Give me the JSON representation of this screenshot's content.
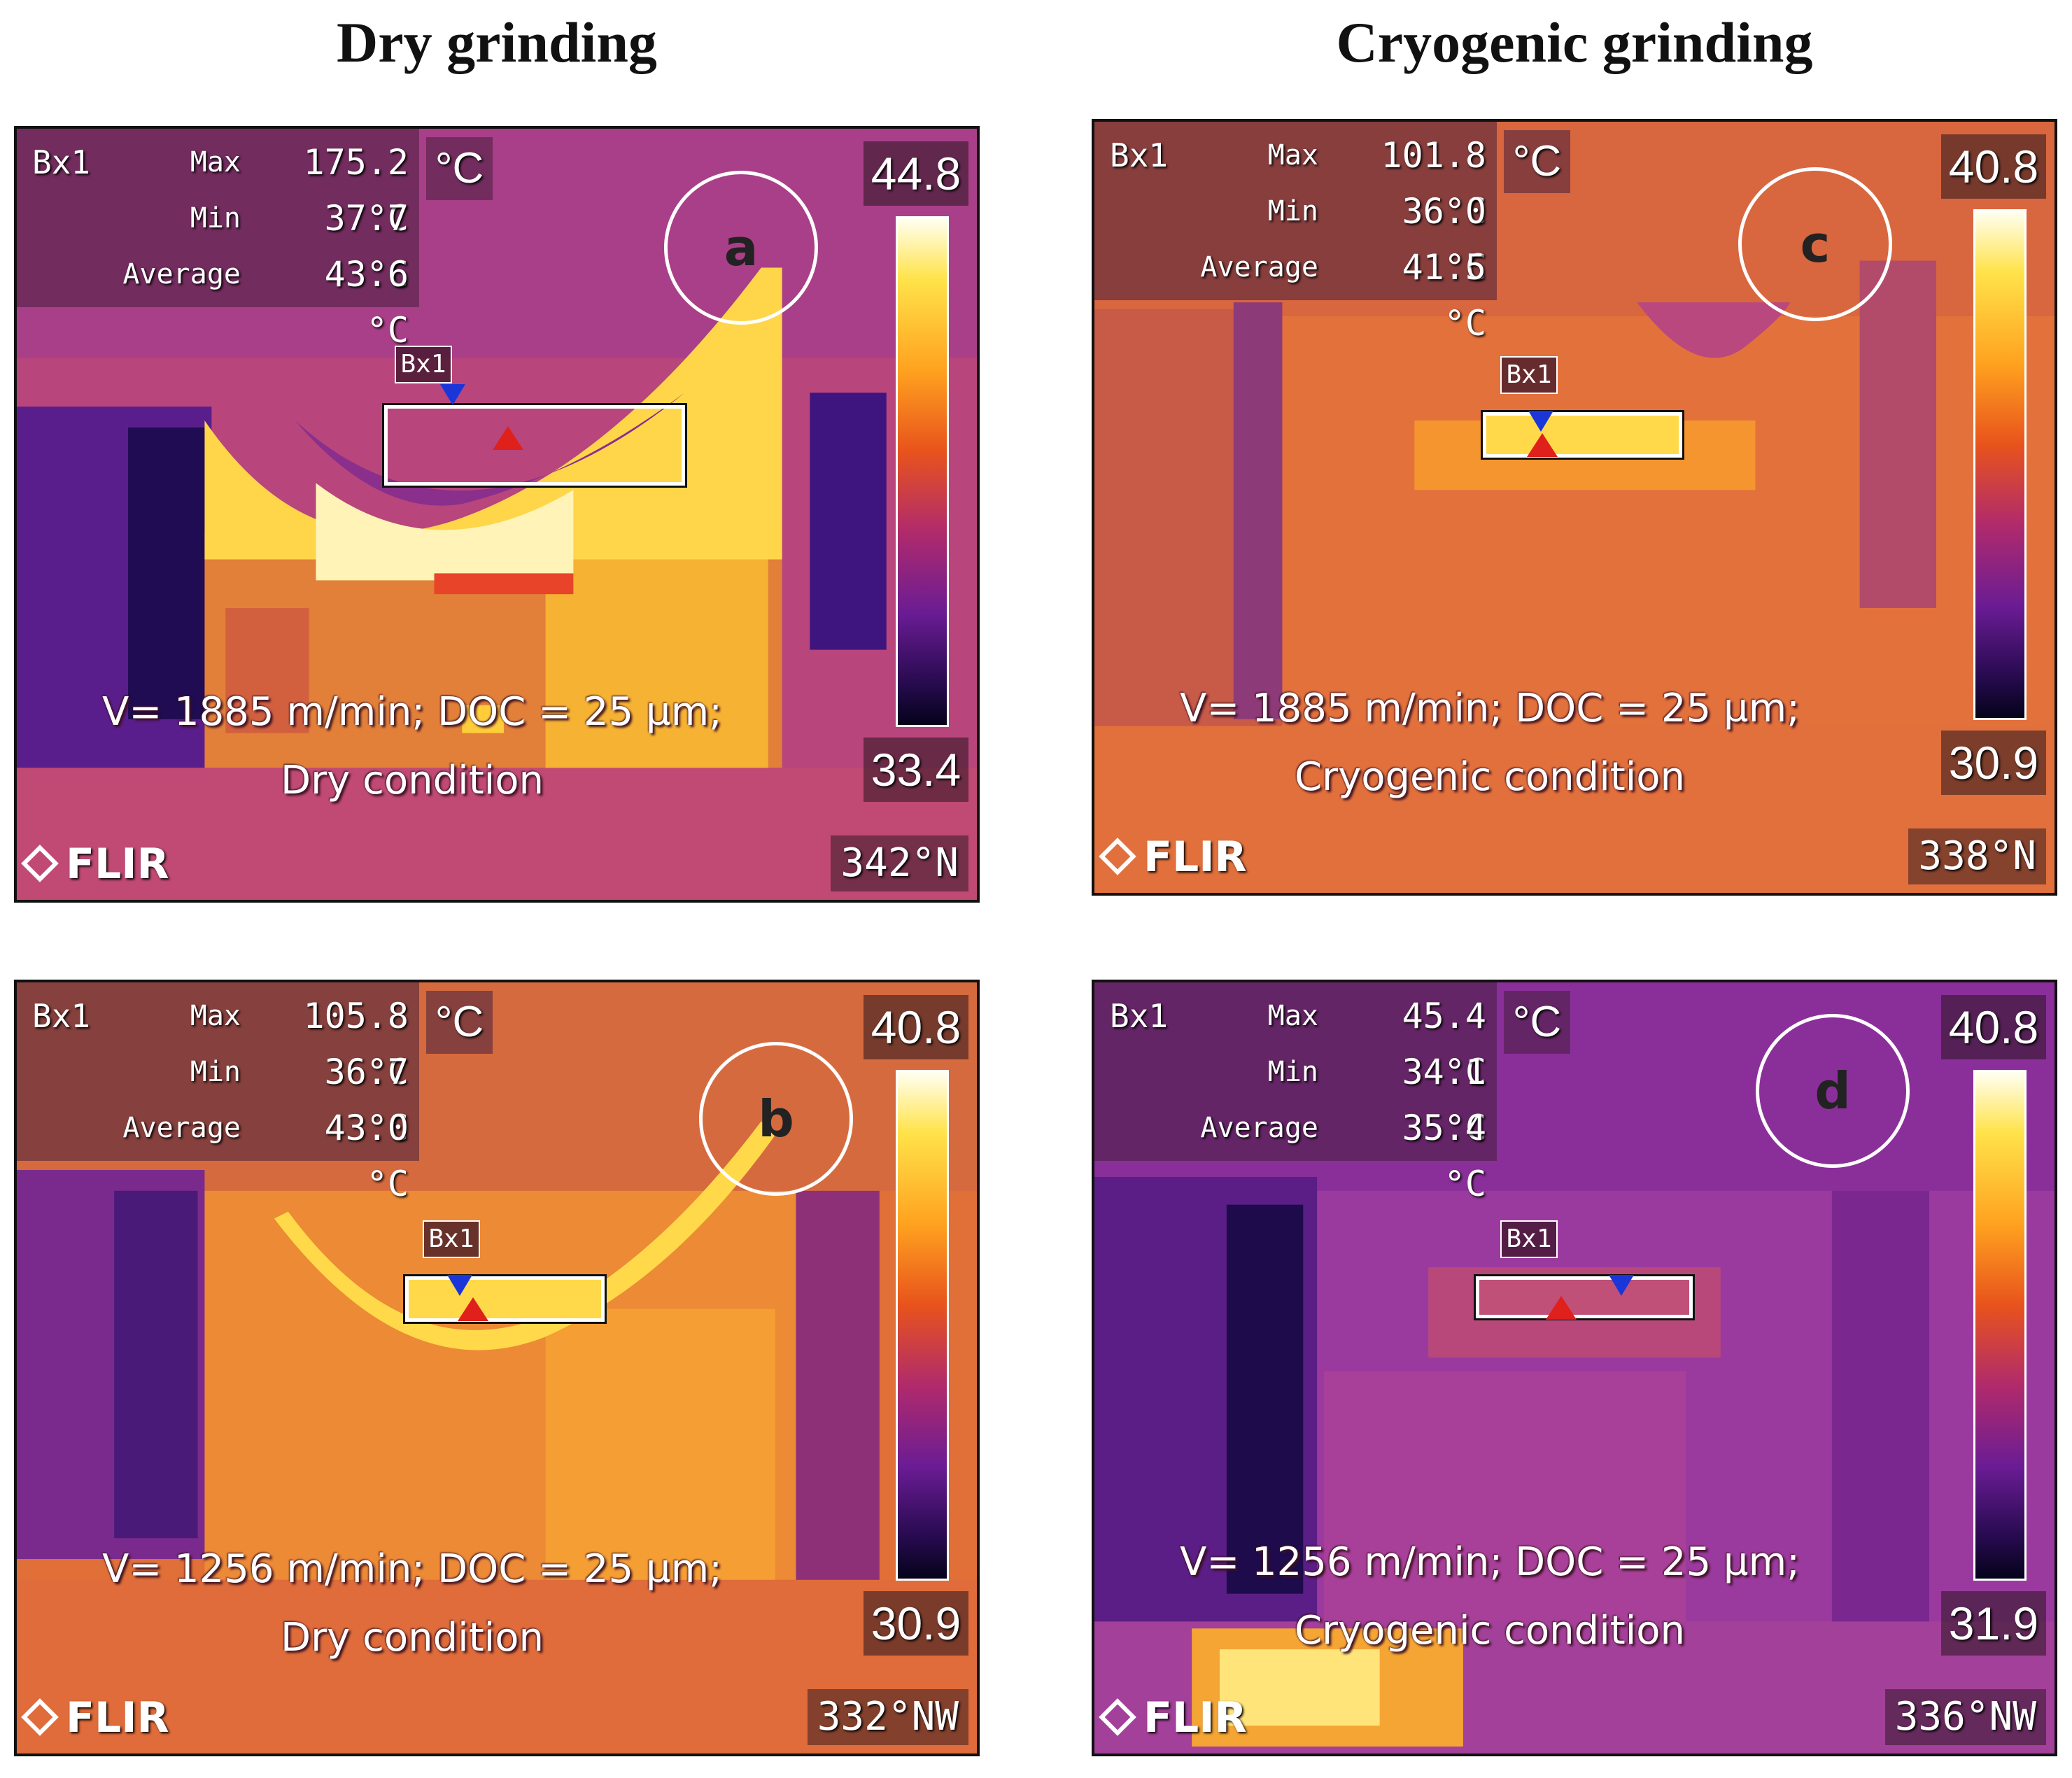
{
  "columns": {
    "left_title": "Dry grinding",
    "right_title": "Cryogenic grinding"
  },
  "panels": [
    {
      "id": "a",
      "bx": "Bx1",
      "max_label": "Max",
      "max": "175.2 °C",
      "min_label": "Min",
      "min": "37.7 °C",
      "avg_label": "Average",
      "avg": "43.6 °C",
      "unit": "°C",
      "scale_max": "44.8",
      "scale_min": "33.4",
      "params_line1": "V= 1885 m/min; DOC = 25 µm;",
      "params_line2": "Dry condition",
      "logo": "FLIR",
      "heading": "342°N",
      "palette": "iron",
      "base_color": "#c24a7c",
      "hot_color": "#ffe060"
    },
    {
      "id": "b",
      "bx": "Bx1",
      "max_label": "Max",
      "max": "105.8 °C",
      "min_label": "Min",
      "min": "36.7 °C",
      "avg_label": "Average",
      "avg": "43.0 °C",
      "unit": "°C",
      "scale_max": "40.8",
      "scale_min": "30.9",
      "params_line1": "V= 1256 m/min; DOC = 25 µm;",
      "params_line2": "Dry condition",
      "logo": "FLIR",
      "heading": "332°NW",
      "palette": "iron",
      "base_color": "#e06f38",
      "hot_color": "#ffe060"
    },
    {
      "id": "c",
      "bx": "Bx1",
      "max_label": "Max",
      "max": "101.8 °C",
      "min_label": "Min",
      "min": "36.0 °C",
      "avg_label": "Average",
      "avg": "41.5 °C",
      "unit": "°C",
      "scale_max": "40.8",
      "scale_min": "30.9",
      "params_line1": "V= 1885 m/min; DOC = 25 µm;",
      "params_line2": "Cryogenic condition",
      "logo": "FLIR",
      "heading": "338°N",
      "palette": "iron",
      "base_color": "#e3713c",
      "hot_color": "#ffe060"
    },
    {
      "id": "d",
      "bx": "Bx1",
      "max_label": "Max",
      "max": "45.4 °C",
      "min_label": "Min",
      "min": "34.1 °C",
      "avg_label": "Average",
      "avg": "35.4 °C",
      "unit": "°C",
      "scale_max": "40.8",
      "scale_min": "31.9",
      "params_line1": "V= 1256 m/min; DOC = 25 µm;",
      "params_line2": "Cryogenic condition",
      "logo": "FLIR",
      "heading": "336°NW",
      "palette": "iron",
      "base_color": "#9b3a9e",
      "hot_color": "#ffe060"
    }
  ]
}
